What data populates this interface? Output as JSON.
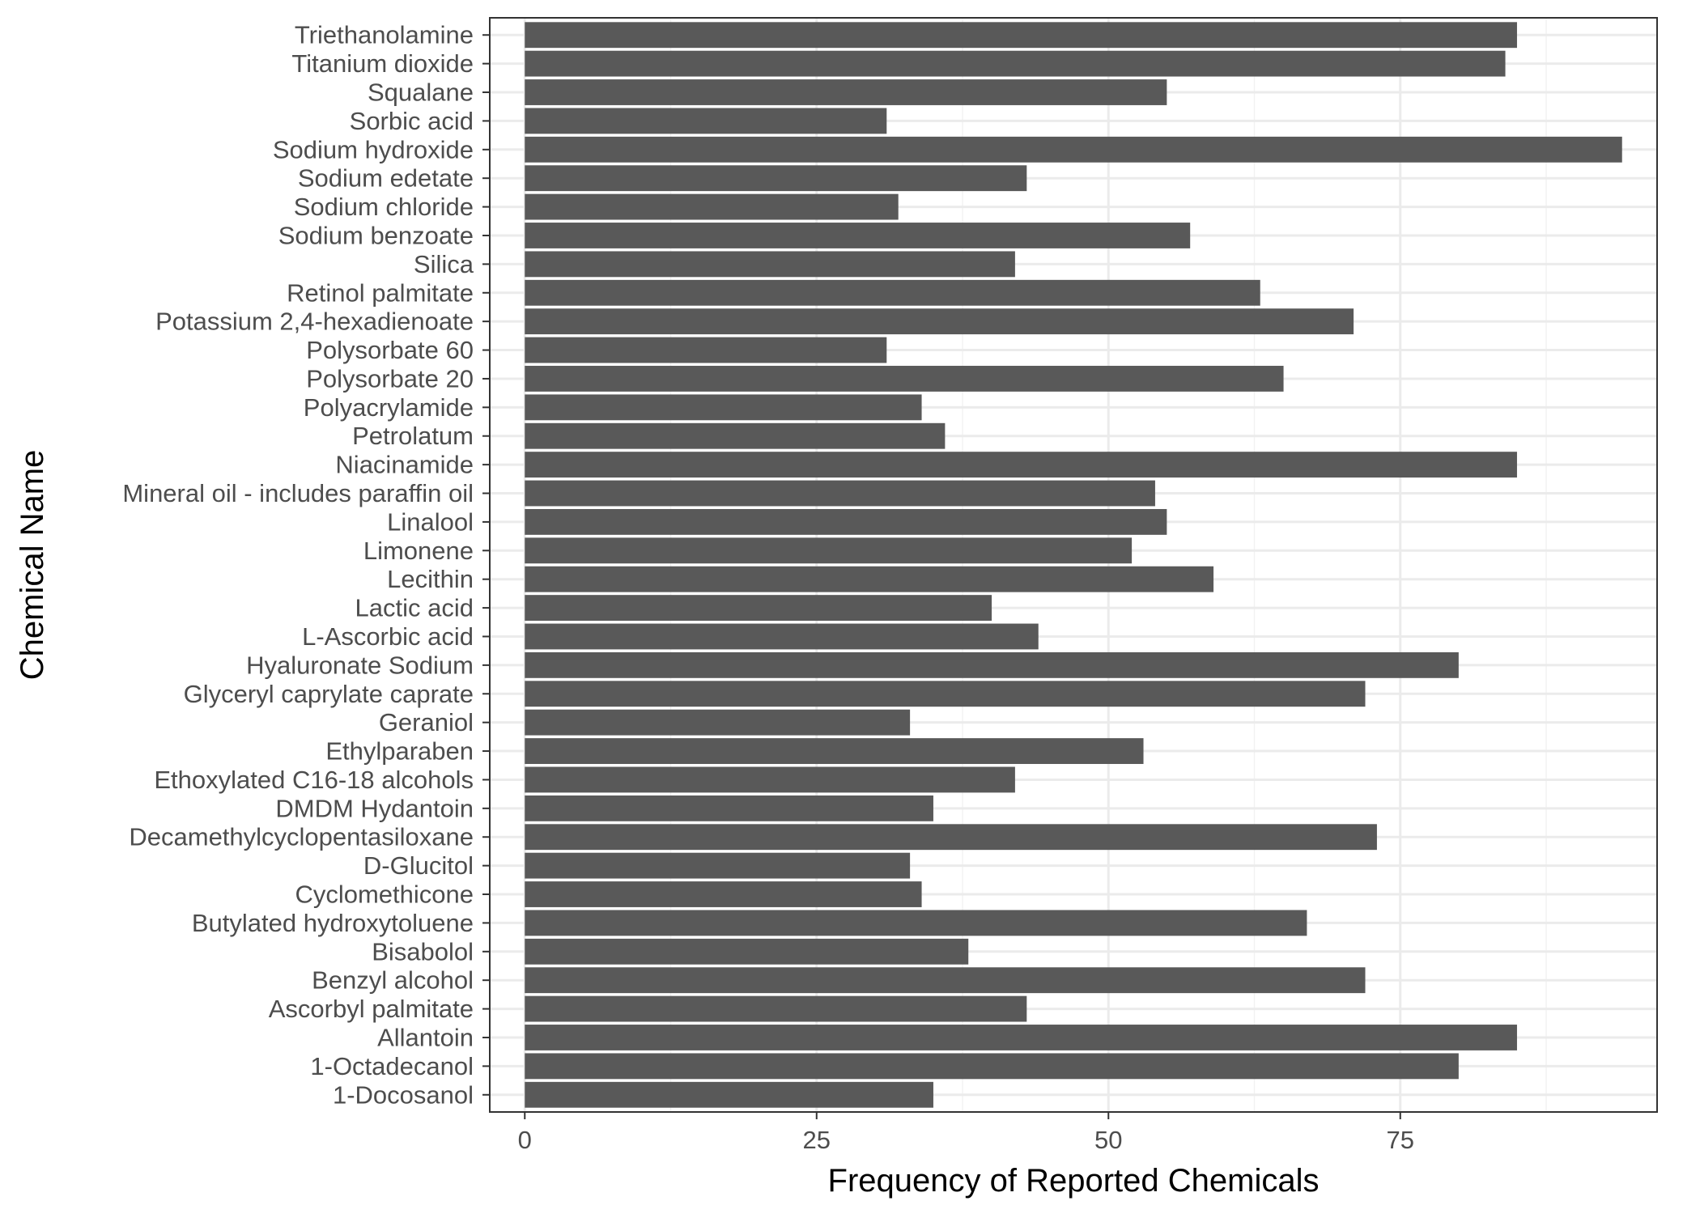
{
  "chart_data": {
    "type": "bar",
    "orientation": "horizontal",
    "title": "",
    "xlabel": "Frequency of Reported Chemicals",
    "ylabel": "Chemical Name",
    "xlim": [
      -3,
      97
    ],
    "xticks": [
      0,
      25,
      50,
      75
    ],
    "grid": true,
    "legend": "none",
    "bar_color": "#595959",
    "categories": [
      "1-Docosanol",
      "1-Octadecanol",
      "Allantoin",
      "Ascorbyl palmitate",
      "Benzyl alcohol",
      "Bisabolol",
      "Butylated hydroxytoluene",
      "Cyclomethicone",
      "D-Glucitol",
      "Decamethylcyclopentasiloxane",
      "DMDM Hydantoin",
      "Ethoxylated C16-18 alcohols",
      "Ethylparaben",
      "Geraniol",
      "Glyceryl caprylate caprate",
      "Hyaluronate Sodium",
      "L-Ascorbic acid",
      "Lactic acid",
      "Lecithin",
      "Limonene",
      "Linalool",
      "Mineral oil - includes paraffin oil",
      "Niacinamide",
      "Petrolatum",
      "Polyacrylamide",
      "Polysorbate 20",
      "Polysorbate 60",
      "Potassium 2,4-hexadienoate",
      "Retinol palmitate",
      "Silica",
      "Sodium benzoate",
      "Sodium chloride",
      "Sodium edetate",
      "Sodium hydroxide",
      "Sorbic acid",
      "Squalane",
      "Titanium dioxide",
      "Triethanolamine"
    ],
    "values": [
      35,
      80,
      85,
      43,
      72,
      38,
      67,
      34,
      33,
      73,
      35,
      42,
      53,
      33,
      72,
      80,
      44,
      40,
      59,
      52,
      55,
      54,
      85,
      36,
      34,
      65,
      31,
      71,
      63,
      42,
      57,
      32,
      43,
      94,
      31,
      55,
      84,
      85
    ]
  }
}
